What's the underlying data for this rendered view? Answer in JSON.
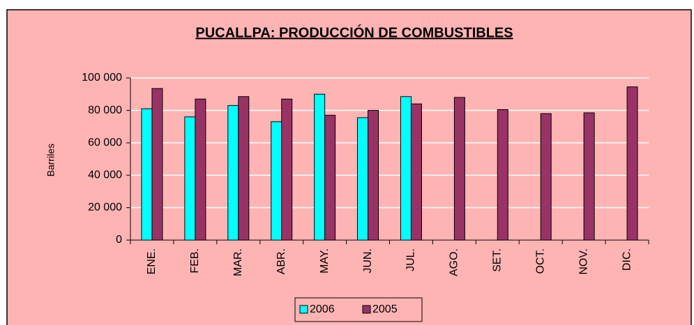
{
  "chart_data": {
    "type": "bar",
    "title": "PUCALLPA: PRODUCCIÓN  DE COMBUSTIBLES",
    "y_label": "Barriles",
    "categories": [
      "ENE.",
      "FEB.",
      "MAR.",
      "ABR.",
      "MAY.",
      "JUN.",
      "JUL.",
      "AGO.",
      "SET.",
      "OCT.",
      "NOV.",
      "DIC."
    ],
    "series": [
      {
        "name": "2006",
        "color": "#00ffff",
        "values": [
          81000,
          76000,
          83000,
          73000,
          90000,
          75500,
          88500,
          null,
          null,
          null,
          null,
          null
        ]
      },
      {
        "name": "2005",
        "color": "#993366",
        "values": [
          93500,
          87000,
          88500,
          87000,
          77000,
          80000,
          84000,
          88000,
          80500,
          78000,
          78500,
          94500
        ]
      }
    ],
    "ylim": [
      0,
      100000
    ],
    "yticks": [
      0,
      {
        "value": 20000,
        "label": "20 000"
      },
      {
        "value": 40000,
        "label": "40 000"
      },
      {
        "value": 60000,
        "label": "60 000"
      },
      {
        "value": 80000,
        "label": "80 000"
      },
      {
        "value": 100000,
        "label": "100 000"
      }
    ],
    "grid": true,
    "legend": "bottom"
  }
}
